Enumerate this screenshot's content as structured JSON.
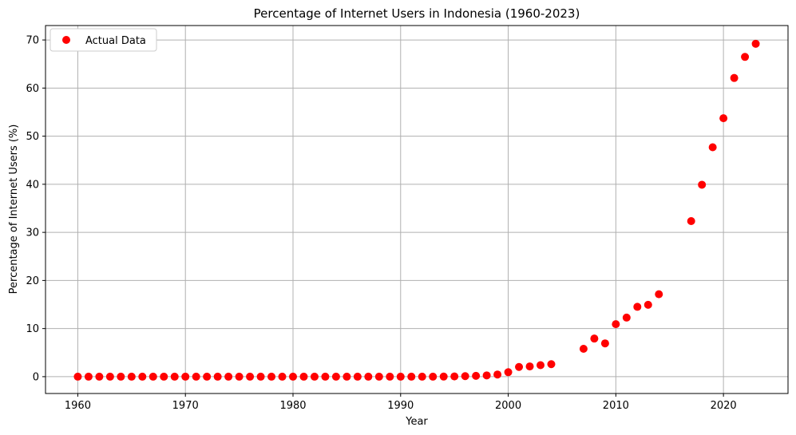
{
  "chart_data": {
    "type": "scatter",
    "title": "Percentage of Internet Users in Indonesia (1960-2023)",
    "xlabel": "Year",
    "ylabel": "Percentage of Internet Users (%)",
    "xlim": [
      1957,
      2026
    ],
    "ylim": [
      -3.5,
      73
    ],
    "xticks": [
      1960,
      1970,
      1980,
      1990,
      2000,
      2010,
      2020
    ],
    "yticks": [
      0,
      10,
      20,
      30,
      40,
      50,
      60,
      70
    ],
    "grid": true,
    "legend_position": "top-left",
    "marker_color": "#ff0000",
    "series": [
      {
        "name": "Actual Data",
        "x": [
          1960,
          1961,
          1962,
          1963,
          1964,
          1965,
          1966,
          1967,
          1968,
          1969,
          1970,
          1971,
          1972,
          1973,
          1974,
          1975,
          1976,
          1977,
          1978,
          1979,
          1980,
          1981,
          1982,
          1983,
          1984,
          1985,
          1986,
          1987,
          1988,
          1989,
          1990,
          1991,
          1992,
          1993,
          1994,
          1995,
          1996,
          1997,
          1998,
          1999,
          2000,
          2001,
          2002,
          2003,
          2004,
          2007,
          2008,
          2009,
          2010,
          2011,
          2012,
          2013,
          2014,
          2017,
          2018,
          2019,
          2020,
          2021,
          2022,
          2023
        ],
        "y": [
          0,
          0,
          0,
          0,
          0,
          0,
          0,
          0,
          0,
          0,
          0,
          0,
          0,
          0,
          0,
          0,
          0,
          0,
          0,
          0,
          0,
          0,
          0,
          0,
          0,
          0,
          0,
          0,
          0,
          0,
          0,
          0,
          0,
          0,
          0.02,
          0.05,
          0.11,
          0.17,
          0.26,
          0.45,
          0.93,
          2.02,
          2.13,
          2.39,
          2.6,
          5.79,
          7.92,
          6.92,
          10.92,
          12.28,
          14.52,
          14.94,
          17.14,
          32.34,
          39.9,
          47.69,
          53.73,
          62.1,
          66.48,
          69.21
        ]
      }
    ]
  }
}
